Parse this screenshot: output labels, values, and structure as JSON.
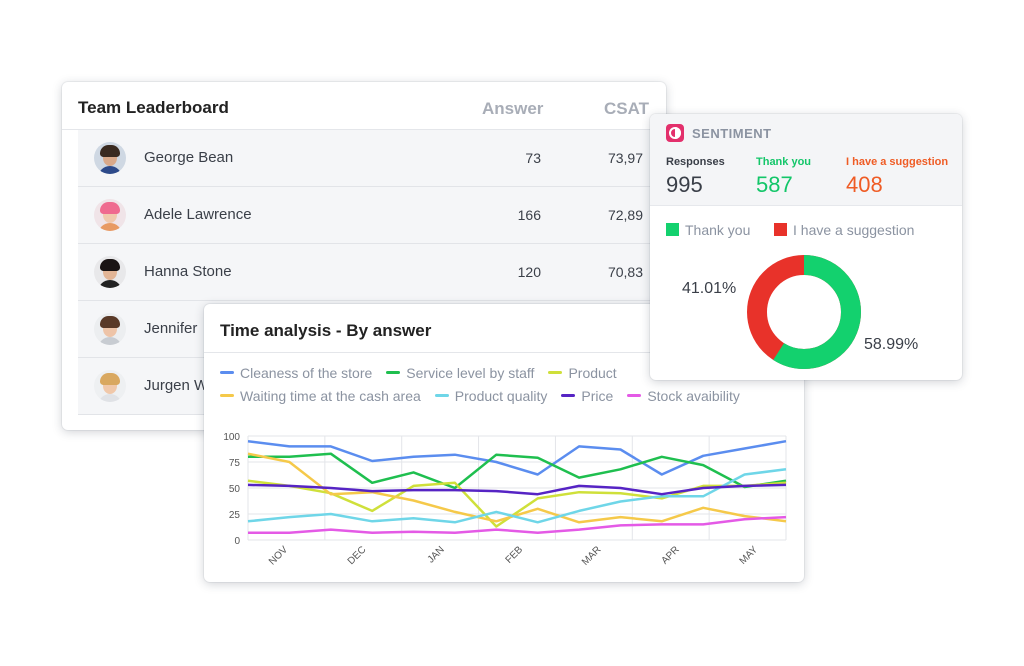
{
  "leaderboard": {
    "title": "Team Leaderboard",
    "col_answer": "Answer",
    "col_csat": "CSAT",
    "rows": [
      {
        "name": "George Bean",
        "answer": "73",
        "csat": "73,97"
      },
      {
        "name": "Adele Lawrence",
        "answer": "166",
        "csat": "72,89"
      },
      {
        "name": "Hanna Stone",
        "answer": "120",
        "csat": "70,83"
      },
      {
        "name": "Jennifer",
        "answer": "",
        "csat": ""
      },
      {
        "name": "Jurgen W",
        "answer": "",
        "csat": ""
      }
    ]
  },
  "sentiment": {
    "title": "SENTIMENT",
    "responses_label": "Responses",
    "responses_value": "995",
    "thank_label": "Thank you",
    "thank_value": "587",
    "suggest_label": "I have a suggestion",
    "suggest_value": "408",
    "legend_thank": "Thank you",
    "legend_suggest": "I have a suggestion",
    "pct_suggest": "41.01%",
    "pct_thank": "58.99%",
    "colors": {
      "thank": "#13d16e",
      "suggest": "#e8322a",
      "accent": "#e3306c"
    }
  },
  "time_analysis": {
    "title": "Time analysis - By answer"
  },
  "chart_data": {
    "type": "line",
    "title": "Time analysis - By answer",
    "ylim": [
      0,
      100
    ],
    "yticks": [
      "0",
      "25",
      "50",
      "75",
      "100"
    ],
    "categories": [
      "NOV",
      "DEC",
      "JAN",
      "FEB",
      "MAR",
      "APR",
      "MAY"
    ],
    "x": [
      0,
      1,
      2,
      3,
      4,
      5,
      6,
      7,
      8,
      9,
      10,
      11,
      12,
      13
    ],
    "grid": true,
    "series": [
      {
        "name": "Cleaness of the store",
        "color": "#5b8def",
        "values": [
          95,
          90,
          90,
          76,
          80,
          82,
          75,
          63,
          90,
          87,
          63,
          81,
          88,
          95
        ]
      },
      {
        "name": "Service level by staff",
        "color": "#1fbf4f",
        "values": [
          80,
          80,
          83,
          55,
          65,
          50,
          82,
          79,
          60,
          68,
          80,
          72,
          51,
          57
        ]
      },
      {
        "name": "Product",
        "color": "#cfe03a",
        "values": [
          57,
          52,
          45,
          28,
          52,
          55,
          13,
          40,
          46,
          45,
          40,
          52,
          52,
          55
        ]
      },
      {
        "name": "Waiting time at the cash area",
        "color": "#f5c94a",
        "values": [
          83,
          75,
          44,
          46,
          38,
          27,
          18,
          30,
          17,
          22,
          18,
          31,
          23,
          18
        ]
      },
      {
        "name": "Product quality",
        "color": "#6fd6e8",
        "values": [
          18,
          22,
          25,
          18,
          21,
          17,
          27,
          17,
          28,
          37,
          42,
          42,
          63,
          68
        ]
      },
      {
        "name": "Price",
        "color": "#5624c4",
        "values": [
          53,
          52,
          50,
          47,
          48,
          48,
          47,
          44,
          52,
          50,
          44,
          50,
          52,
          53
        ]
      },
      {
        "name": "Stock avaibility",
        "color": "#e45ae6",
        "values": [
          7,
          7,
          10,
          7,
          8,
          7,
          10,
          7,
          10,
          14,
          15,
          15,
          20,
          22
        ]
      }
    ]
  }
}
